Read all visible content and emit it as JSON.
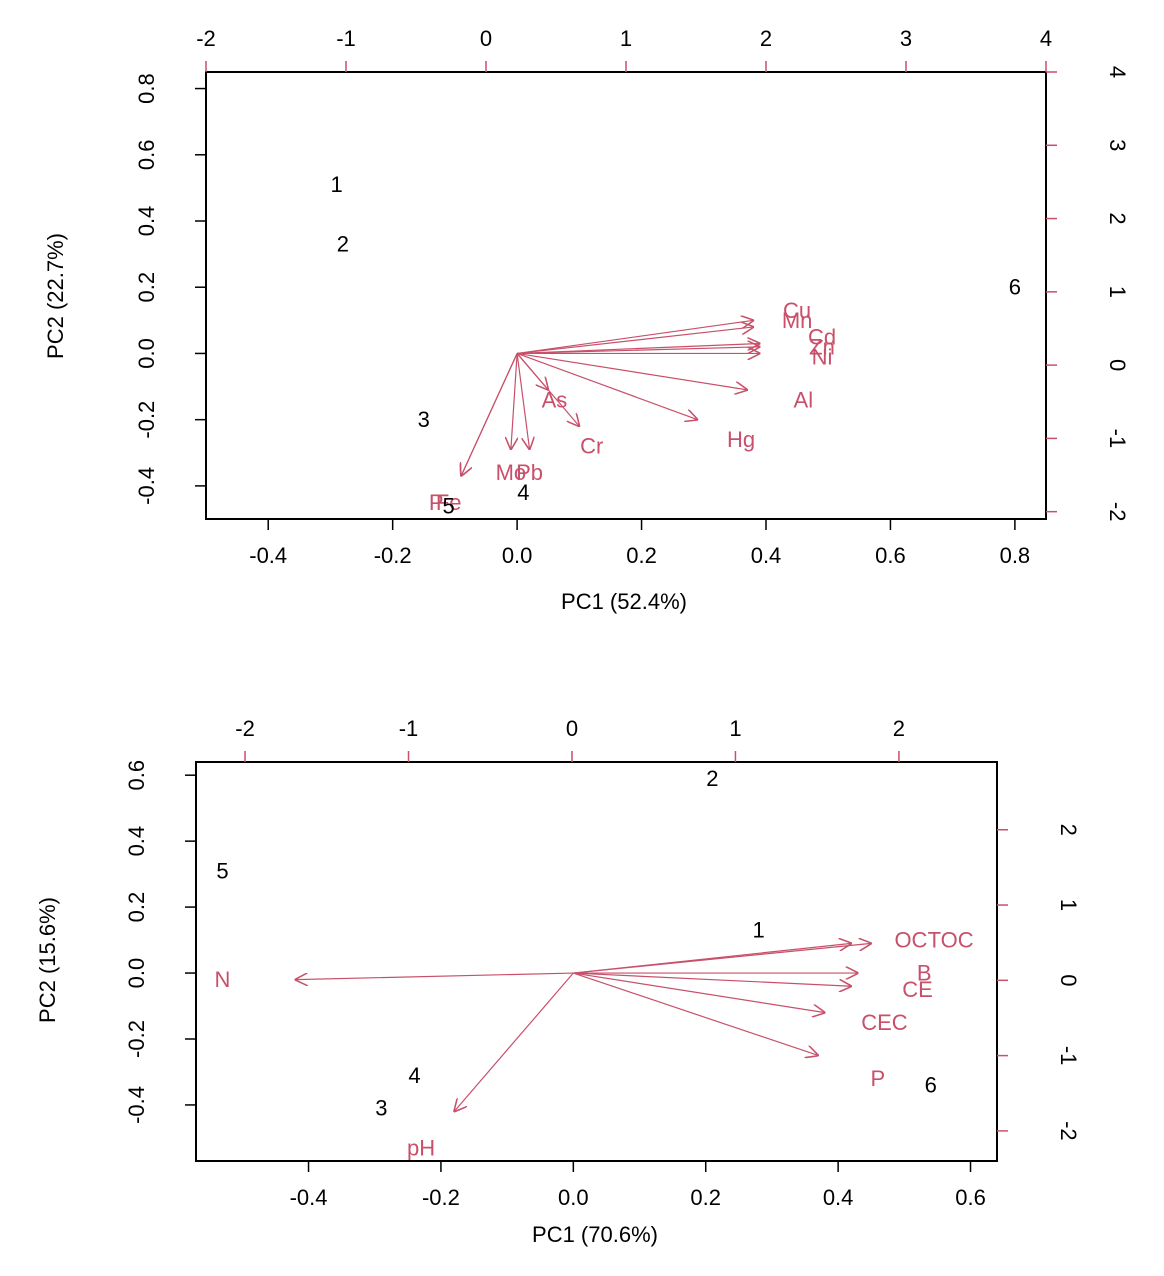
{
  "chart_data": [
    {
      "type": "scatter",
      "subtype": "biplot",
      "title": "",
      "xlabel": "PC1 (52.4%)",
      "ylabel": "PC2 (22.7%)",
      "xlim": [
        -0.5,
        0.85
      ],
      "ylim": [
        -0.5,
        0.85
      ],
      "xticks": [
        -0.4,
        -0.2,
        0.0,
        0.2,
        0.4,
        0.6,
        0.8
      ],
      "yticks": [
        -0.4,
        -0.2,
        0.0,
        0.2,
        0.4,
        0.6,
        0.8
      ],
      "xtick_labels": [
        "-0.4",
        "-0.2",
        "0.0",
        "0.2",
        "0.4",
        "0.6",
        "0.8"
      ],
      "ytick_labels": [
        "-0.4",
        "-0.2",
        "0.0",
        "0.2",
        "0.4",
        "0.6",
        "0.8"
      ],
      "top_axis": {
        "lim": [
          -2.0,
          4.0
        ],
        "ticks": [
          -2,
          -1,
          0,
          1,
          2,
          3,
          4
        ],
        "labels": [
          "-2",
          "-1",
          "0",
          "1",
          "2",
          "3",
          "4"
        ]
      },
      "right_axis": {
        "lim": [
          -2.1,
          4.0
        ],
        "ticks": [
          -2,
          -1,
          0,
          1,
          2,
          3,
          4
        ],
        "labels": [
          "-2",
          "-1",
          "0",
          "1",
          "2",
          "3",
          "4"
        ]
      },
      "grid": false,
      "colors": {
        "points": "#000000",
        "loadings": "#c8506a",
        "frame": "#000000"
      },
      "points": [
        {
          "label": "1",
          "x": -0.29,
          "y": 0.51
        },
        {
          "label": "2",
          "x": -0.28,
          "y": 0.33
        },
        {
          "label": "3",
          "x": -0.15,
          "y": -0.2
        },
        {
          "label": "4",
          "x": 0.01,
          "y": -0.42
        },
        {
          "label": "5",
          "x": -0.11,
          "y": -0.46
        },
        {
          "label": "6",
          "x": 0.8,
          "y": 0.2
        }
      ],
      "loadings": [
        {
          "label": "Cu",
          "x": 0.38,
          "y": 0.1,
          "lx": 0.45,
          "ly": 0.13
        },
        {
          "label": "Mn",
          "x": 0.38,
          "y": 0.08,
          "lx": 0.45,
          "ly": 0.1
        },
        {
          "label": "Cd",
          "x": 0.39,
          "y": 0.03,
          "lx": 0.49,
          "ly": 0.05
        },
        {
          "label": "Zn",
          "x": 0.39,
          "y": 0.02,
          "lx": 0.49,
          "ly": 0.02
        },
        {
          "label": "Ni",
          "x": 0.39,
          "y": 0.0,
          "lx": 0.49,
          "ly": -0.01
        },
        {
          "label": "Al",
          "x": 0.37,
          "y": -0.11,
          "lx": 0.46,
          "ly": -0.14
        },
        {
          "label": "Hg",
          "x": 0.29,
          "y": -0.2,
          "lx": 0.36,
          "ly": -0.26
        },
        {
          "label": "Cr",
          "x": 0.1,
          "y": -0.22,
          "lx": 0.12,
          "ly": -0.28
        },
        {
          "label": "As",
          "x": 0.05,
          "y": -0.11,
          "lx": 0.06,
          "ly": -0.14
        },
        {
          "label": "Pb",
          "x": 0.02,
          "y": -0.29,
          "lx": 0.02,
          "ly": -0.36
        },
        {
          "label": "Mo",
          "x": -0.01,
          "y": -0.29,
          "lx": -0.01,
          "ly": -0.36
        },
        {
          "label": "P",
          "x": -0.09,
          "y": -0.37,
          "lx": -0.13,
          "ly": -0.45
        },
        {
          "label": "Fe",
          "x": -0.09,
          "y": -0.37,
          "lx": -0.11,
          "ly": -0.45
        }
      ]
    },
    {
      "type": "scatter",
      "subtype": "biplot",
      "title": "",
      "xlabel": "PC1 (70.6%)",
      "ylabel": "PC2 (15.6%)",
      "xlim": [
        -0.57,
        0.64
      ],
      "ylim": [
        -0.57,
        0.64
      ],
      "xticks": [
        -0.4,
        -0.2,
        0.0,
        0.2,
        0.4,
        0.6
      ],
      "yticks": [
        -0.4,
        -0.2,
        0.0,
        0.2,
        0.4,
        0.6
      ],
      "xtick_labels": [
        "-0.4",
        "-0.2",
        "0.0",
        "0.2",
        "0.4",
        "0.6"
      ],
      "ytick_labels": [
        "-0.4",
        "-0.2",
        "0.0",
        "0.2",
        "0.4",
        "0.6"
      ],
      "top_axis": {
        "lim": [
          -2.3,
          2.6
        ],
        "ticks": [
          -2,
          -1,
          0,
          1,
          2
        ],
        "labels": [
          "-2",
          "-1",
          "0",
          "1",
          "2"
        ]
      },
      "right_axis": {
        "lim": [
          -2.4,
          2.9
        ],
        "ticks": [
          -2,
          -1,
          0,
          1,
          2
        ],
        "labels": [
          "-2",
          "-1",
          "0",
          "1",
          "2"
        ]
      },
      "grid": false,
      "colors": {
        "points": "#000000",
        "loadings": "#c8506a",
        "frame": "#000000"
      },
      "points": [
        {
          "label": "1",
          "x": 0.28,
          "y": 0.13
        },
        {
          "label": "2",
          "x": 0.21,
          "y": 0.59
        },
        {
          "label": "3",
          "x": -0.29,
          "y": -0.41
        },
        {
          "label": "4",
          "x": -0.24,
          "y": -0.31
        },
        {
          "label": "5",
          "x": -0.53,
          "y": 0.31
        },
        {
          "label": "6",
          "x": 0.54,
          "y": -0.34
        }
      ],
      "loadings": [
        {
          "label": "OC",
          "x": 0.42,
          "y": 0.09,
          "lx": 0.51,
          "ly": 0.1
        },
        {
          "label": "TOC",
          "x": 0.45,
          "y": 0.09,
          "lx": 0.57,
          "ly": 0.1
        },
        {
          "label": "B",
          "x": 0.43,
          "y": 0.0,
          "lx": 0.53,
          "ly": 0.0
        },
        {
          "label": "CE",
          "x": 0.42,
          "y": -0.04,
          "lx": 0.52,
          "ly": -0.05
        },
        {
          "label": "CEC",
          "x": 0.38,
          "y": -0.12,
          "lx": 0.47,
          "ly": -0.15
        },
        {
          "label": "P",
          "x": 0.37,
          "y": -0.25,
          "lx": 0.46,
          "ly": -0.32
        },
        {
          "label": "N",
          "x": -0.42,
          "y": -0.02,
          "lx": -0.53,
          "ly": -0.02
        },
        {
          "label": "pH",
          "x": -0.18,
          "y": -0.42,
          "lx": -0.23,
          "ly": -0.53
        }
      ]
    }
  ]
}
